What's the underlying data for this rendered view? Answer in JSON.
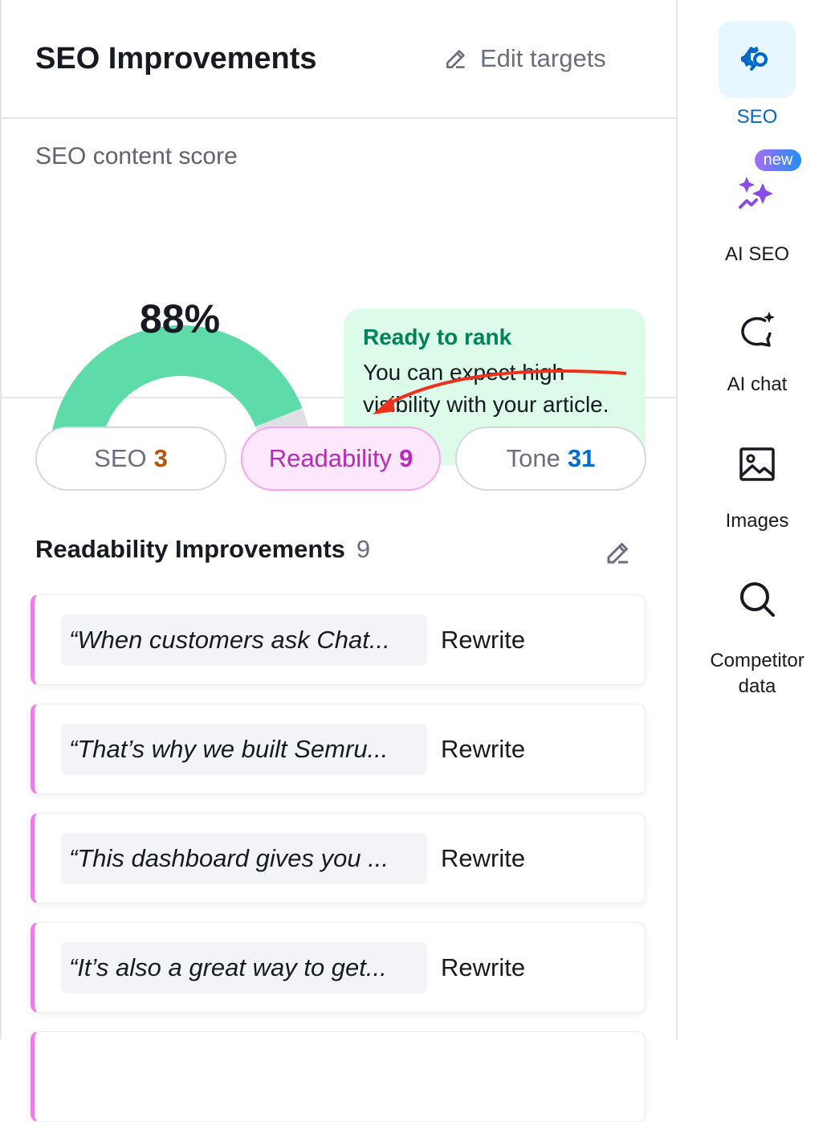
{
  "header": {
    "title": "SEO Improvements",
    "edit_label": "Edit targets"
  },
  "score": {
    "label": "SEO content score",
    "value": 88,
    "value_text": "88%",
    "colors": {
      "fill": "#5ddcaa",
      "track": "#dfe0e6"
    },
    "callout": {
      "title": "Ready to rank",
      "text": "You can expect high visibility with your article."
    }
  },
  "tabs": [
    {
      "label": "SEO",
      "count": "3",
      "count_color": "#b0570a"
    },
    {
      "label": "Readability",
      "count": "9",
      "active": true
    },
    {
      "label": "Tone",
      "count": "31",
      "count_color": "#006dca"
    }
  ],
  "section": {
    "title": "Readability Improvements",
    "count": "9"
  },
  "items": [
    {
      "quote": "“When customers ask Chat...",
      "action": "Rewrite"
    },
    {
      "quote": "“That’s why we built Semru...",
      "action": "Rewrite"
    },
    {
      "quote": "“This dashboard gives you ...",
      "action": "Rewrite"
    },
    {
      "quote": "“It’s also a great way to get...",
      "action": "Rewrite"
    }
  ],
  "sidebar": {
    "items": [
      {
        "label": "SEO",
        "active": true,
        "icon": "seo-gear-search-icon"
      },
      {
        "label": "AI SEO",
        "badge": "new",
        "icon": "sparkles-icon"
      },
      {
        "label": "AI chat",
        "icon": "chat-sparkle-icon"
      },
      {
        "label": "Images",
        "icon": "image-icon"
      },
      {
        "label": "Competitor data",
        "icon": "search-icon"
      }
    ]
  }
}
